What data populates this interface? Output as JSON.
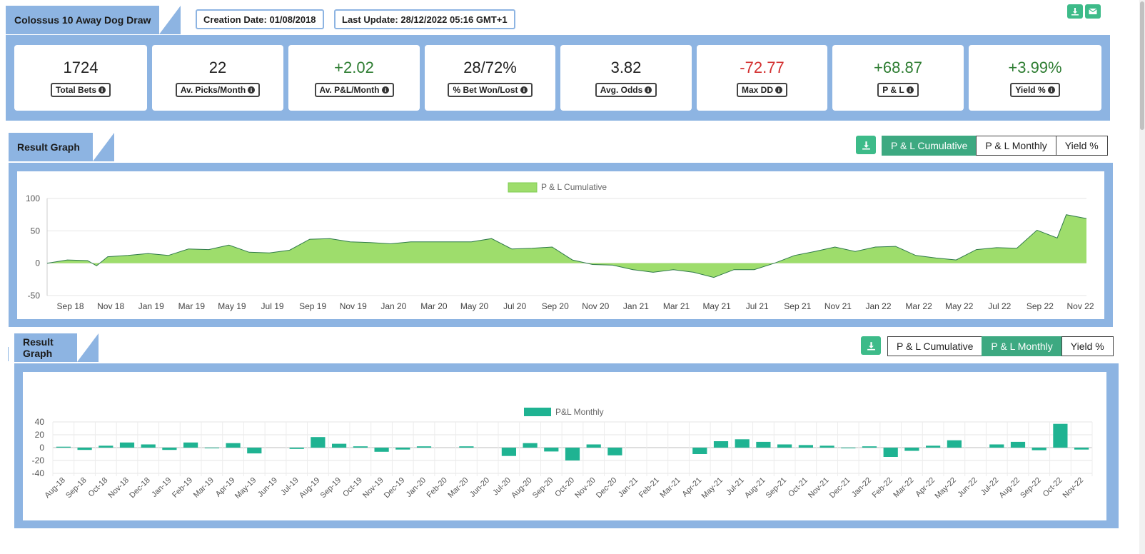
{
  "header": {
    "title": "Colossus 10 Away Dog Draw",
    "creation_date": "Creation Date: 01/08/2018",
    "last_update": "Last Update: 28/12/2022 05:16 GMT+1"
  },
  "icons": {
    "download": "download-icon",
    "email": "envelope-icon",
    "info": "info-circle-icon"
  },
  "colors": {
    "panel": "#8db4e2",
    "button_green": "#3dbb89",
    "active_button": "#3da981",
    "area_fill": "#9edd6c",
    "area_line": "#2f7a4a",
    "bar_fill": "#1fb392",
    "positive": "#2e7d32",
    "negative": "#d32f2f"
  },
  "stats": [
    {
      "value": "1724",
      "label": "Total Bets",
      "tone": "neutral"
    },
    {
      "value": "22",
      "label": "Av. Picks/Month",
      "tone": "neutral"
    },
    {
      "value": "+2.02",
      "label": "Av. P&L/Month",
      "tone": "positive"
    },
    {
      "value": "28/72%",
      "label": "% Bet Won/Lost",
      "tone": "neutral"
    },
    {
      "value": "3.82",
      "label": "Avg. Odds",
      "tone": "neutral"
    },
    {
      "value": "-72.77",
      "label": "Max DD",
      "tone": "negative"
    },
    {
      "value": "+68.87",
      "label": "P & L",
      "tone": "positive"
    },
    {
      "value": "+3.99%",
      "label": "Yield %",
      "tone": "positive"
    }
  ],
  "graph1": {
    "title": "Result Graph",
    "buttons": [
      "P & L Cumulative",
      "P & L Monthly",
      "Yield %"
    ],
    "active": 0
  },
  "graph2": {
    "title": "Result Graph",
    "buttons": [
      "P & L Cumulative",
      "P & L Monthly",
      "Yield %"
    ],
    "active": 1
  },
  "chart_data": [
    {
      "type": "area",
      "legend": "P & L Cumulative",
      "legend_position": "top-center",
      "grid": true,
      "ylim": [
        -50,
        100
      ],
      "yticks": [
        100,
        50,
        0,
        -50
      ],
      "xticks": [
        "Sep 18",
        "Nov 18",
        "Jan 19",
        "Mar 19",
        "May 19",
        "Jul 19",
        "Sep 19",
        "Nov 19",
        "Jan 20",
        "Mar 20",
        "May 20",
        "Jul 20",
        "Sep 20",
        "Nov 20",
        "Jan 21",
        "Mar 21",
        "May 21",
        "Jul 21",
        "Sep 21",
        "Nov 21",
        "Jan 22",
        "Mar 22",
        "May 22",
        "Jul 22",
        "Sep 22",
        "Nov 22"
      ],
      "points": [
        [
          "Aug 18",
          0
        ],
        [
          "Sep 18",
          5
        ],
        [
          "Oct 18",
          4
        ],
        [
          "Oct 18",
          -4
        ],
        [
          "Nov 18",
          10
        ],
        [
          "Dec 18",
          12
        ],
        [
          "Jan 19",
          15
        ],
        [
          "Feb 19",
          12
        ],
        [
          "Mar 19",
          22
        ],
        [
          "Apr 19",
          21
        ],
        [
          "May 19",
          28
        ],
        [
          "Jun 19",
          17
        ],
        [
          "Jul 19",
          16
        ],
        [
          "Aug 19",
          20
        ],
        [
          "Sep 19",
          37
        ],
        [
          "Oct 19",
          38
        ],
        [
          "Nov 19",
          33
        ],
        [
          "Dec 19",
          32
        ],
        [
          "Jan 20",
          30
        ],
        [
          "Feb 20",
          33
        ],
        [
          "Mar 20",
          33
        ],
        [
          "Apr 20",
          33
        ],
        [
          "May 20",
          33
        ],
        [
          "Jun 20",
          38
        ],
        [
          "Jul 20",
          22
        ],
        [
          "Aug 20",
          23
        ],
        [
          "Sep 20",
          25
        ],
        [
          "Oct 20",
          5
        ],
        [
          "Nov 20",
          -2
        ],
        [
          "Dec 20",
          -3
        ],
        [
          "Jan 21",
          -10
        ],
        [
          "Feb 21",
          -14
        ],
        [
          "Mar 21",
          -10
        ],
        [
          "Apr 21",
          -14
        ],
        [
          "May 21",
          -22
        ],
        [
          "Jun 21",
          -10
        ],
        [
          "Jul 21",
          -10
        ],
        [
          "Aug 21",
          0
        ],
        [
          "Sep 21",
          12
        ],
        [
          "Oct 21",
          18
        ],
        [
          "Nov 21",
          25
        ],
        [
          "Dec 21",
          18
        ],
        [
          "Jan 22",
          25
        ],
        [
          "Feb 22",
          26
        ],
        [
          "Mar 22",
          12
        ],
        [
          "Apr 22",
          8
        ],
        [
          "May 22",
          5
        ],
        [
          "Jun 22",
          21
        ],
        [
          "Jul 22",
          24
        ],
        [
          "Aug 22",
          23
        ],
        [
          "Sep 22",
          51
        ],
        [
          "Oct 22",
          39
        ],
        [
          "Oct 22",
          75
        ],
        [
          "Nov 22",
          69
        ]
      ]
    },
    {
      "type": "bar",
      "legend": "P&L Monthly",
      "legend_position": "top-center",
      "grid": true,
      "ylim": [
        -40,
        40
      ],
      "yticks": [
        40,
        20,
        0,
        -20,
        -40
      ],
      "categories": [
        "Aug-18",
        "Sep-18",
        "Oct-18",
        "Nov-18",
        "Dec-18",
        "Jan-19",
        "Feb-19",
        "Mar-19",
        "Apr-19",
        "May-19",
        "Jun-19",
        "Jul-19",
        "Aug-19",
        "Sep-19",
        "Oct-19",
        "Nov-19",
        "Dec-19",
        "Jan-20",
        "Feb-20",
        "Mar-20",
        "Jun-20",
        "Jul-20",
        "Aug-20",
        "Sep-20",
        "Oct-20",
        "Nov-20",
        "Dec-20",
        "Jan-21",
        "Feb-21",
        "Mar-21",
        "Apr-21",
        "May-21",
        "Jul-21",
        "Aug-21",
        "Sep-21",
        "Oct-21",
        "Nov-21",
        "Dec-21",
        "Jan-22",
        "Feb-22",
        "Mar-22",
        "Apr-22",
        "May-22",
        "Jun-22",
        "Jul-22",
        "Aug-22",
        "Sep-22",
        "Oct-22",
        "Nov-22"
      ],
      "values": [
        1.5,
        -3.5,
        3,
        8,
        5,
        -3.5,
        8,
        -1,
        7,
        -9,
        0,
        -2,
        16.5,
        6,
        2,
        -6.5,
        -3,
        2,
        0,
        2,
        0,
        -13,
        7,
        -6,
        -20,
        5,
        -12,
        0,
        0,
        0,
        -10,
        10,
        13,
        9,
        5,
        4,
        3,
        -1,
        2,
        -14.5,
        -5,
        3,
        11.5,
        0,
        5,
        9,
        -4,
        37,
        -3
      ]
    }
  ]
}
